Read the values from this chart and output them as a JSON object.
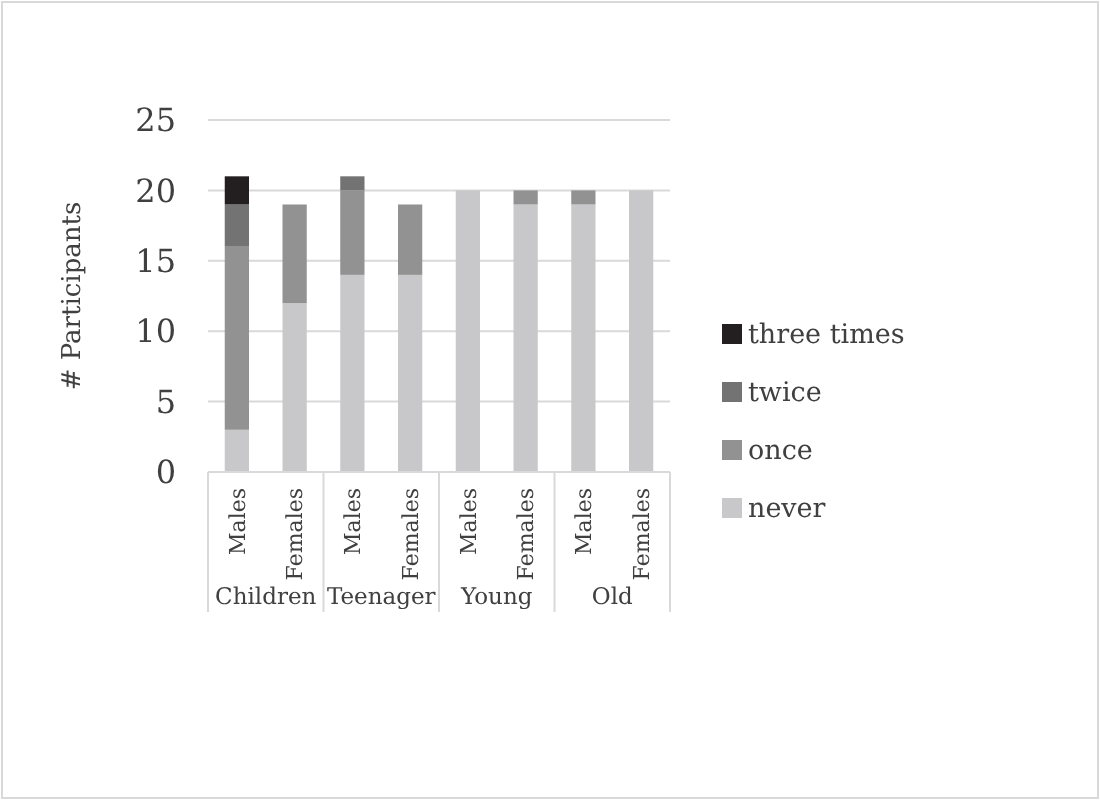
{
  "chart_data": {
    "type": "bar",
    "stacked": true,
    "ylabel": "# Participants",
    "categories": [
      "Males",
      "Females",
      "Males",
      "Females",
      "Males",
      "Females",
      "Males",
      "Females"
    ],
    "annotations": [
      "Children",
      "Teenager",
      "Young",
      "Old"
    ],
    "series": [
      {
        "name": "never",
        "color": "#c8c8ca",
        "values": [
          3,
          12,
          14,
          14,
          20,
          19,
          19,
          20
        ]
      },
      {
        "name": "once",
        "color": "#929292",
        "values": [
          13,
          7,
          6,
          5,
          0,
          1,
          1,
          0
        ]
      },
      {
        "name": "twice",
        "color": "#737373",
        "values": [
          3,
          0,
          1,
          0,
          0,
          0,
          0,
          0
        ]
      },
      {
        "name": "three times",
        "color": "#231f20",
        "values": [
          2,
          0,
          0,
          0,
          0,
          0,
          0,
          0
        ]
      }
    ],
    "ylim": [
      0,
      25
    ],
    "yticks": [
      0,
      5,
      10,
      15,
      20,
      25
    ],
    "grid": "y",
    "legend": "right"
  }
}
